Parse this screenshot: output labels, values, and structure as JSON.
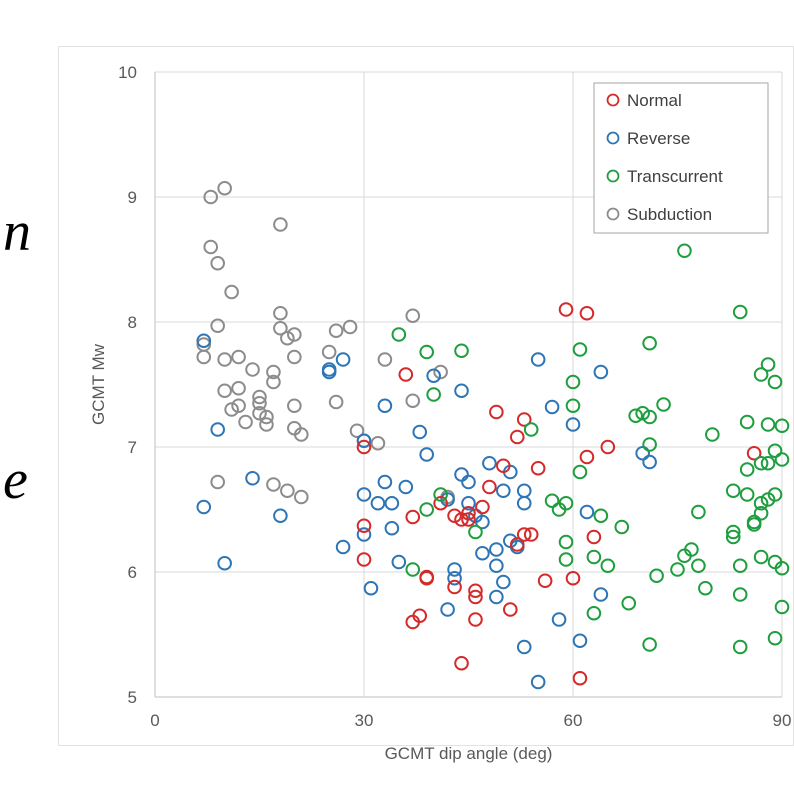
{
  "fragments": {
    "top": "n",
    "bottom": "e"
  },
  "chart_data": {
    "type": "scatter",
    "xlabel": "GCMT dip angle (deg)",
    "ylabel": "GCMT Mw",
    "xlim": [
      0,
      90
    ],
    "ylim": [
      5,
      10
    ],
    "xticks": [
      0,
      30,
      60,
      90
    ],
    "yticks": [
      5,
      6,
      7,
      8,
      9,
      10
    ],
    "grid": true,
    "legend_position": "top-right",
    "series": [
      {
        "name": "Normal",
        "color": "#d42a2a",
        "points": [
          [
            30,
            7.0
          ],
          [
            30,
            6.37
          ],
          [
            30,
            6.1
          ],
          [
            36,
            7.58
          ],
          [
            37,
            6.44
          ],
          [
            37,
            5.6
          ],
          [
            38,
            5.65
          ],
          [
            39,
            5.95
          ],
          [
            39,
            5.96
          ],
          [
            41,
            6.55
          ],
          [
            43,
            6.45
          ],
          [
            43,
            5.88
          ],
          [
            44,
            6.42
          ],
          [
            44,
            5.27
          ],
          [
            45,
            6.42
          ],
          [
            45,
            6.47
          ],
          [
            46,
            5.85
          ],
          [
            46,
            5.8
          ],
          [
            46,
            5.62
          ],
          [
            47,
            6.52
          ],
          [
            48,
            6.68
          ],
          [
            49,
            7.28
          ],
          [
            50,
            6.85
          ],
          [
            51,
            5.7
          ],
          [
            52,
            7.08
          ],
          [
            52,
            6.22
          ],
          [
            53,
            7.22
          ],
          [
            53,
            6.3
          ],
          [
            54,
            6.3
          ],
          [
            55,
            6.83
          ],
          [
            56,
            5.93
          ],
          [
            59,
            8.1
          ],
          [
            60,
            5.95
          ],
          [
            61,
            5.15
          ],
          [
            62,
            8.07
          ],
          [
            62,
            6.92
          ],
          [
            63,
            6.28
          ],
          [
            65,
            7.0
          ],
          [
            86,
            6.95
          ]
        ]
      },
      {
        "name": "Reverse",
        "color": "#2e75b6",
        "points": [
          [
            7,
            7.85
          ],
          [
            7,
            6.52
          ],
          [
            9,
            7.14
          ],
          [
            10,
            6.07
          ],
          [
            14,
            6.75
          ],
          [
            18,
            6.45
          ],
          [
            25,
            7.62
          ],
          [
            25,
            7.6
          ],
          [
            27,
            7.7
          ],
          [
            27,
            6.2
          ],
          [
            30,
            7.05
          ],
          [
            30,
            6.62
          ],
          [
            30,
            6.3
          ],
          [
            31,
            5.87
          ],
          [
            32,
            6.55
          ],
          [
            33,
            7.33
          ],
          [
            33,
            6.72
          ],
          [
            34,
            6.55
          ],
          [
            34,
            6.35
          ],
          [
            35,
            6.08
          ],
          [
            36,
            6.68
          ],
          [
            38,
            7.12
          ],
          [
            39,
            6.94
          ],
          [
            40,
            7.57
          ],
          [
            42,
            6.58
          ],
          [
            42,
            5.7
          ],
          [
            43,
            6.02
          ],
          [
            43,
            5.95
          ],
          [
            44,
            7.45
          ],
          [
            44,
            6.78
          ],
          [
            45,
            6.72
          ],
          [
            45,
            6.55
          ],
          [
            46,
            6.45
          ],
          [
            47,
            6.4
          ],
          [
            47,
            6.15
          ],
          [
            48,
            6.87
          ],
          [
            49,
            6.18
          ],
          [
            49,
            6.05
          ],
          [
            49,
            5.8
          ],
          [
            50,
            6.65
          ],
          [
            50,
            5.92
          ],
          [
            51,
            6.8
          ],
          [
            51,
            6.25
          ],
          [
            52,
            6.2
          ],
          [
            53,
            6.65
          ],
          [
            53,
            6.55
          ],
          [
            53,
            5.4
          ],
          [
            55,
            7.7
          ],
          [
            55,
            5.12
          ],
          [
            57,
            7.32
          ],
          [
            58,
            5.62
          ],
          [
            60,
            7.18
          ],
          [
            61,
            5.45
          ],
          [
            62,
            6.48
          ],
          [
            64,
            7.6
          ],
          [
            64,
            5.82
          ],
          [
            70,
            6.95
          ],
          [
            71,
            6.88
          ]
        ]
      },
      {
        "name": "Transcurrent",
        "color": "#1e9e3e",
        "points": [
          [
            35,
            7.9
          ],
          [
            37,
            6.02
          ],
          [
            39,
            7.76
          ],
          [
            39,
            6.5
          ],
          [
            40,
            7.42
          ],
          [
            41,
            6.62
          ],
          [
            44,
            7.77
          ],
          [
            46,
            6.32
          ],
          [
            54,
            7.14
          ],
          [
            57,
            6.57
          ],
          [
            58,
            6.5
          ],
          [
            59,
            6.55
          ],
          [
            59,
            6.24
          ],
          [
            59,
            6.1
          ],
          [
            60,
            7.52
          ],
          [
            60,
            7.33
          ],
          [
            61,
            7.78
          ],
          [
            61,
            6.8
          ],
          [
            63,
            6.12
          ],
          [
            63,
            5.67
          ],
          [
            64,
            6.45
          ],
          [
            65,
            6.05
          ],
          [
            67,
            6.36
          ],
          [
            68,
            5.75
          ],
          [
            69,
            7.25
          ],
          [
            70,
            7.27
          ],
          [
            71,
            7.83
          ],
          [
            71,
            7.24
          ],
          [
            71,
            7.02
          ],
          [
            71,
            5.42
          ],
          [
            72,
            5.97
          ],
          [
            73,
            7.34
          ],
          [
            75,
            6.02
          ],
          [
            76,
            8.57
          ],
          [
            76,
            6.13
          ],
          [
            77,
            6.18
          ],
          [
            78,
            6.48
          ],
          [
            78,
            6.05
          ],
          [
            79,
            5.87
          ],
          [
            80,
            7.1
          ],
          [
            83,
            6.65
          ],
          [
            83,
            6.32
          ],
          [
            83,
            6.28
          ],
          [
            84,
            6.05
          ],
          [
            84,
            5.82
          ],
          [
            84,
            5.4
          ],
          [
            84,
            8.08
          ],
          [
            85,
            7.2
          ],
          [
            85,
            6.82
          ],
          [
            85,
            6.62
          ],
          [
            86,
            6.4
          ],
          [
            86,
            6.38
          ],
          [
            87,
            7.58
          ],
          [
            87,
            6.87
          ],
          [
            87,
            6.55
          ],
          [
            87,
            6.47
          ],
          [
            87,
            6.12
          ],
          [
            88,
            7.66
          ],
          [
            88,
            7.18
          ],
          [
            88,
            6.87
          ],
          [
            88,
            6.58
          ],
          [
            89,
            7.52
          ],
          [
            89,
            6.97
          ],
          [
            89,
            6.62
          ],
          [
            89,
            6.08
          ],
          [
            89,
            5.47
          ],
          [
            90,
            7.17
          ],
          [
            90,
            6.9
          ],
          [
            90,
            6.03
          ],
          [
            90,
            5.72
          ]
        ]
      },
      {
        "name": "Subduction",
        "color": "#8c8c8c",
        "points": [
          [
            7,
            7.82
          ],
          [
            7,
            7.72
          ],
          [
            8,
            9.0
          ],
          [
            8,
            8.6
          ],
          [
            9,
            8.47
          ],
          [
            9,
            7.97
          ],
          [
            9,
            6.72
          ],
          [
            10,
            9.07
          ],
          [
            10,
            7.7
          ],
          [
            10,
            7.45
          ],
          [
            11,
            8.24
          ],
          [
            11,
            7.3
          ],
          [
            12,
            7.72
          ],
          [
            12,
            7.47
          ],
          [
            12,
            7.33
          ],
          [
            13,
            7.2
          ],
          [
            14,
            7.62
          ],
          [
            15,
            7.4
          ],
          [
            15,
            7.35
          ],
          [
            15,
            7.27
          ],
          [
            16,
            7.24
          ],
          [
            16,
            7.18
          ],
          [
            17,
            7.6
          ],
          [
            17,
            7.52
          ],
          [
            17,
            6.7
          ],
          [
            18,
            8.78
          ],
          [
            18,
            8.07
          ],
          [
            18,
            7.95
          ],
          [
            19,
            7.87
          ],
          [
            19,
            6.65
          ],
          [
            20,
            7.9
          ],
          [
            20,
            7.72
          ],
          [
            20,
            7.33
          ],
          [
            20,
            7.15
          ],
          [
            21,
            7.1
          ],
          [
            21,
            6.6
          ],
          [
            25,
            7.76
          ],
          [
            26,
            7.93
          ],
          [
            26,
            7.36
          ],
          [
            28,
            7.96
          ],
          [
            29,
            7.13
          ],
          [
            30,
            7.05
          ],
          [
            32,
            7.03
          ],
          [
            33,
            7.7
          ],
          [
            37,
            8.05
          ],
          [
            37,
            7.37
          ],
          [
            41,
            7.6
          ],
          [
            42,
            6.6
          ]
        ]
      }
    ]
  }
}
